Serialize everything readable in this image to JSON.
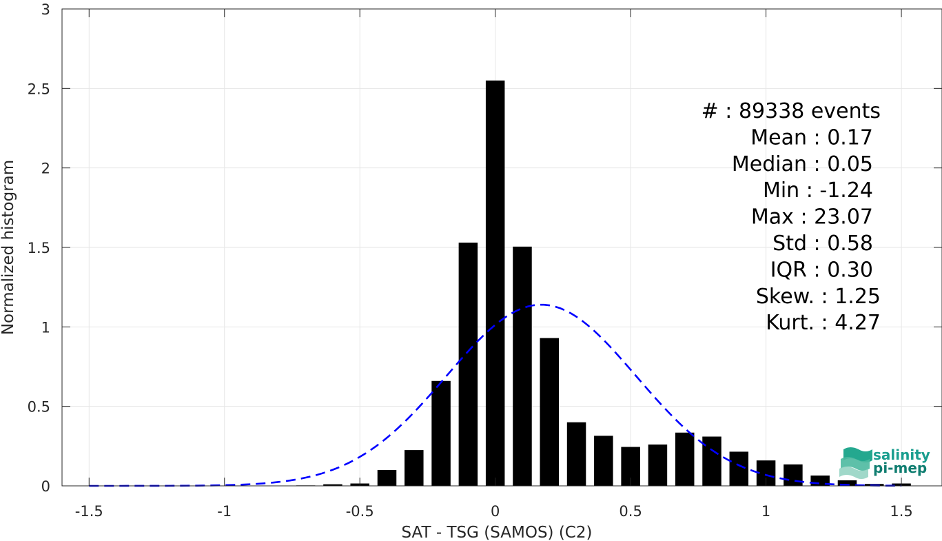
{
  "chart_data": {
    "type": "bar",
    "xlabel": "SAT - TSG (SAMOS) (C2)",
    "ylabel": "Normalized histogram",
    "xlim": [
      -1.6,
      1.65
    ],
    "ylim": [
      0,
      3
    ],
    "grid": true,
    "xticks": [
      -1.5,
      -1,
      -0.5,
      0,
      0.5,
      1,
      1.5
    ],
    "xtick_labels": [
      "-1.5",
      "-1",
      "-0.5",
      "0",
      "0.5",
      "1",
      "1.5"
    ],
    "yticks": [
      0,
      0.5,
      1,
      1.5,
      2,
      2.5,
      3
    ],
    "ytick_labels": [
      "0",
      "0.5",
      "1",
      "1.5",
      "2",
      "2.5",
      "3"
    ],
    "bar_width": 0.07,
    "bars": [
      {
        "x": -1.5,
        "y": 0
      },
      {
        "x": -1.4,
        "y": 0
      },
      {
        "x": -1.3,
        "y": 0
      },
      {
        "x": -1.2,
        "y": 0
      },
      {
        "x": -1.1,
        "y": 0
      },
      {
        "x": -1.0,
        "y": 0
      },
      {
        "x": -0.9,
        "y": 0
      },
      {
        "x": -0.8,
        "y": 0.002
      },
      {
        "x": -0.7,
        "y": 0.003
      },
      {
        "x": -0.6,
        "y": 0.01
      },
      {
        "x": -0.5,
        "y": 0.015
      },
      {
        "x": -0.4,
        "y": 0.1
      },
      {
        "x": -0.3,
        "y": 0.225
      },
      {
        "x": -0.2,
        "y": 0.66
      },
      {
        "x": -0.1,
        "y": 1.53
      },
      {
        "x": 0.0,
        "y": 2.55
      },
      {
        "x": 0.1,
        "y": 1.505
      },
      {
        "x": 0.2,
        "y": 0.93
      },
      {
        "x": 0.3,
        "y": 0.4
      },
      {
        "x": 0.4,
        "y": 0.315
      },
      {
        "x": 0.5,
        "y": 0.245
      },
      {
        "x": 0.6,
        "y": 0.26
      },
      {
        "x": 0.7,
        "y": 0.335
      },
      {
        "x": 0.8,
        "y": 0.31
      },
      {
        "x": 0.9,
        "y": 0.215
      },
      {
        "x": 1.0,
        "y": 0.16
      },
      {
        "x": 1.1,
        "y": 0.135
      },
      {
        "x": 1.2,
        "y": 0.065
      },
      {
        "x": 1.3,
        "y": 0.035
      },
      {
        "x": 1.4,
        "y": 0.012
      },
      {
        "x": 1.5,
        "y": 0.015
      }
    ],
    "fit_curve": {
      "style": "dashed",
      "color": "#0000FF",
      "mean": 0.17,
      "std": 0.35,
      "x_range": [
        -1.5,
        1.5
      ]
    },
    "bar_color": "#000000"
  },
  "stats": [
    {
      "label": "#  ",
      "value": "89338 events"
    },
    {
      "label": "Mean",
      "value": "0.17"
    },
    {
      "label": "Median",
      "value": "0.05"
    },
    {
      "label": "Min",
      "value": "-1.24"
    },
    {
      "label": "Max",
      "value": "23.07"
    },
    {
      "label": "Std",
      "value": "0.58"
    },
    {
      "label": "IQR",
      "value": "0.30"
    },
    {
      "label": "Skew.",
      "value": "1.25"
    },
    {
      "label": "Kurt.",
      "value": "4.27"
    }
  ],
  "logo": {
    "line1": "salinity",
    "line2": "pi-mep",
    "color_top": "#1a9e8f",
    "color_bottom": "#0f7d70"
  }
}
